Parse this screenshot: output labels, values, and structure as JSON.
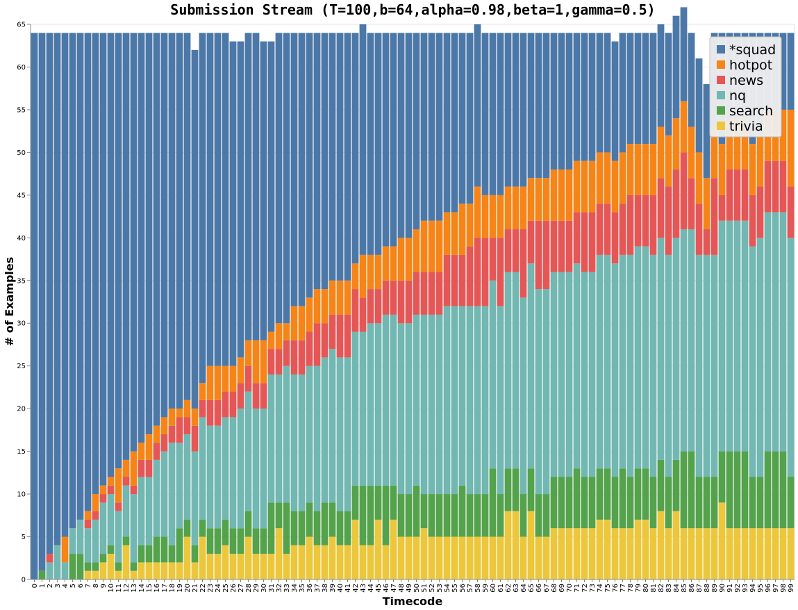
{
  "chart_data": {
    "type": "bar",
    "stacked": true,
    "title": "Submission Stream (T=100,b=64,alpha=0.98,beta=1,gamma=0.5)",
    "xlabel": "Timecode",
    "ylabel": "# of Examples",
    "ylim": [
      0,
      65
    ],
    "yticks": [
      0,
      5,
      10,
      15,
      20,
      25,
      30,
      35,
      40,
      45,
      50,
      55,
      60,
      65
    ],
    "grid": true,
    "legend_position": "top-right",
    "categories": [
      0,
      1,
      2,
      3,
      4,
      5,
      6,
      7,
      8,
      9,
      10,
      11,
      12,
      13,
      14,
      15,
      16,
      17,
      18,
      19,
      20,
      21,
      22,
      23,
      24,
      25,
      26,
      27,
      28,
      29,
      30,
      31,
      32,
      33,
      34,
      35,
      36,
      37,
      38,
      39,
      40,
      41,
      42,
      43,
      44,
      45,
      46,
      47,
      48,
      49,
      50,
      51,
      52,
      53,
      54,
      55,
      56,
      57,
      58,
      59,
      60,
      61,
      62,
      63,
      64,
      65,
      66,
      67,
      68,
      69,
      70,
      71,
      72,
      73,
      74,
      75,
      76,
      77,
      78,
      79,
      80,
      81,
      82,
      83,
      84,
      85,
      86,
      87,
      88,
      89,
      90,
      91,
      92,
      93,
      94,
      95,
      96,
      97,
      98,
      99
    ],
    "series": [
      {
        "name": "trivia",
        "color": "#ECC73B",
        "values": [
          0,
          0,
          0,
          0,
          0,
          0,
          0,
          1,
          1,
          2,
          3,
          1,
          4,
          1,
          2,
          2,
          2,
          2,
          2,
          2,
          5,
          2,
          5,
          3,
          3,
          4,
          3,
          3,
          5,
          3,
          3,
          3,
          6,
          3,
          4,
          4,
          5,
          4,
          4,
          5,
          4,
          4,
          7,
          4,
          4,
          7,
          4,
          7,
          5,
          5,
          5,
          6,
          5,
          5,
          5,
          5,
          5,
          5,
          5,
          5,
          5,
          5,
          8,
          8,
          5,
          8,
          5,
          5,
          6,
          6,
          6,
          6,
          6,
          6,
          7,
          7,
          6,
          6,
          6,
          7,
          7,
          6,
          8,
          6,
          8,
          6,
          6,
          6,
          6,
          6,
          9,
          6,
          6,
          6,
          6,
          6,
          6,
          6,
          6,
          6
        ]
      },
      {
        "name": "search",
        "color": "#54A24B",
        "values": [
          0,
          1,
          0,
          0,
          0,
          3,
          3,
          1,
          1,
          1,
          1,
          1,
          1,
          1,
          2,
          2,
          3,
          3,
          2,
          4,
          2,
          2,
          2,
          3,
          3,
          3,
          3,
          3,
          3,
          3,
          3,
          6,
          3,
          6,
          4,
          4,
          4,
          4,
          5,
          4,
          4,
          4,
          4,
          7,
          7,
          4,
          7,
          4,
          5,
          5,
          6,
          4,
          5,
          5,
          5,
          5,
          6,
          5,
          5,
          5,
          8,
          5,
          5,
          5,
          5,
          5,
          5,
          5,
          6,
          6,
          6,
          7,
          6,
          6,
          6,
          6,
          6,
          7,
          6,
          6,
          6,
          6,
          6,
          6,
          6,
          9,
          9,
          6,
          6,
          6,
          6,
          9,
          9,
          9,
          6,
          6,
          9,
          9,
          9,
          6
        ]
      },
      {
        "name": "nq",
        "color": "#72B7B2",
        "values": [
          0,
          0,
          2,
          4,
          2,
          3,
          4,
          4,
          5,
          6,
          6,
          6,
          6,
          8,
          8,
          8,
          9,
          10,
          12,
          10,
          10,
          11,
          12,
          12,
          12,
          12,
          13,
          14,
          14,
          14,
          14,
          15,
          15,
          16,
          16,
          16,
          16,
          17,
          17,
          18,
          18,
          18,
          18,
          18,
          19,
          19,
          20,
          20,
          20,
          20,
          20,
          21,
          21,
          21,
          22,
          22,
          21,
          22,
          22,
          22,
          22,
          22,
          23,
          23,
          23,
          24,
          24,
          24,
          24,
          24,
          24,
          24,
          24,
          24,
          25,
          25,
          25,
          25,
          26,
          26,
          26,
          26,
          26,
          26,
          26,
          26,
          26,
          26,
          26,
          26,
          27,
          27,
          27,
          27,
          27,
          28,
          28,
          28,
          28,
          28
        ]
      },
      {
        "name": "news",
        "color": "#E45756",
        "values": [
          0,
          0,
          1,
          0,
          0,
          0,
          0,
          1,
          1,
          1,
          1,
          1,
          1,
          1,
          2,
          2,
          2,
          2,
          2,
          3,
          2,
          3,
          2,
          3,
          3,
          3,
          3,
          3,
          3,
          3,
          3,
          3,
          3,
          3,
          4,
          4,
          4,
          5,
          4,
          4,
          5,
          5,
          5,
          4,
          4,
          4,
          4,
          4,
          5,
          5,
          5,
          5,
          5,
          5,
          6,
          6,
          6,
          7,
          8,
          8,
          5,
          8,
          5,
          5,
          8,
          5,
          8,
          8,
          6,
          6,
          6,
          6,
          7,
          7,
          6,
          6,
          6,
          6,
          7,
          6,
          6,
          7,
          7,
          8,
          8,
          9,
          6,
          6,
          3,
          9,
          3,
          6,
          6,
          6,
          6,
          6,
          6,
          6,
          6,
          6
        ]
      },
      {
        "name": "hotpot",
        "color": "#F58518",
        "values": [
          0,
          0,
          0,
          0,
          3,
          0,
          0,
          1,
          2,
          1,
          1,
          4,
          2,
          4,
          2,
          3,
          2,
          2,
          2,
          1,
          2,
          2,
          2,
          4,
          4,
          3,
          3,
          3,
          3,
          5,
          5,
          2,
          3,
          2,
          4,
          4,
          4,
          4,
          4,
          4,
          4,
          4,
          3,
          5,
          4,
          4,
          4,
          4,
          5,
          5,
          5,
          6,
          6,
          6,
          5,
          5,
          6,
          5,
          6,
          5,
          5,
          5,
          5,
          5,
          5,
          5,
          5,
          5,
          6,
          6,
          6,
          6,
          6,
          6,
          6,
          6,
          6,
          6,
          6,
          6,
          6,
          6,
          6,
          6,
          6,
          6,
          6,
          6,
          6,
          6,
          6,
          6,
          6,
          6,
          6,
          6,
          6,
          6,
          6,
          9
        ]
      },
      {
        "name": "*squad",
        "color": "#4C78A8",
        "values": [
          64,
          63,
          61,
          60,
          59,
          58,
          57,
          56,
          54,
          53,
          52,
          51,
          50,
          49,
          48,
          47,
          46,
          45,
          44,
          44,
          43,
          42,
          41,
          39,
          39,
          39,
          38,
          37,
          36,
          36,
          35,
          34,
          34,
          34,
          32,
          32,
          31,
          30,
          30,
          29,
          29,
          29,
          27,
          27,
          26,
          26,
          25,
          25,
          24,
          24,
          23,
          22,
          22,
          22,
          21,
          21,
          20,
          20,
          19,
          19,
          19,
          19,
          18,
          18,
          18,
          17,
          17,
          17,
          16,
          16,
          16,
          15,
          15,
          15,
          14,
          14,
          14,
          14,
          13,
          13,
          13,
          13,
          12,
          12,
          12,
          11,
          11,
          11,
          11,
          11,
          13,
          10,
          10,
          10,
          13,
          12,
          9,
          9,
          9,
          9
        ]
      }
    ],
    "legend_order": [
      "*squad",
      "hotpot",
      "news",
      "nq",
      "search",
      "trivia"
    ]
  }
}
